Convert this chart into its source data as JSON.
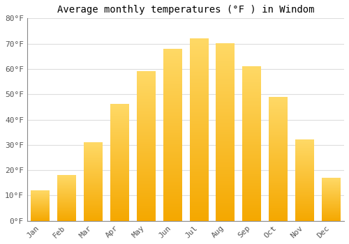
{
  "title": "Average monthly temperatures (°F ) in Windom",
  "months": [
    "Jan",
    "Feb",
    "Mar",
    "Apr",
    "May",
    "Jun",
    "Jul",
    "Aug",
    "Sep",
    "Oct",
    "Nov",
    "Dec"
  ],
  "values": [
    12,
    18,
    31,
    46,
    59,
    68,
    72,
    70,
    61,
    49,
    32,
    17
  ],
  "bar_color_bottom": "#F5A800",
  "bar_color_top": "#FFD966",
  "ylim": [
    0,
    80
  ],
  "yticks": [
    0,
    10,
    20,
    30,
    40,
    50,
    60,
    70,
    80
  ],
  "ytick_labels": [
    "0°F",
    "10°F",
    "20°F",
    "30°F",
    "40°F",
    "50°F",
    "60°F",
    "70°F",
    "80°F"
  ],
  "bg_color": "#ffffff",
  "grid_color": "#dddddd",
  "title_fontsize": 10,
  "tick_fontsize": 8,
  "bar_width": 0.7
}
